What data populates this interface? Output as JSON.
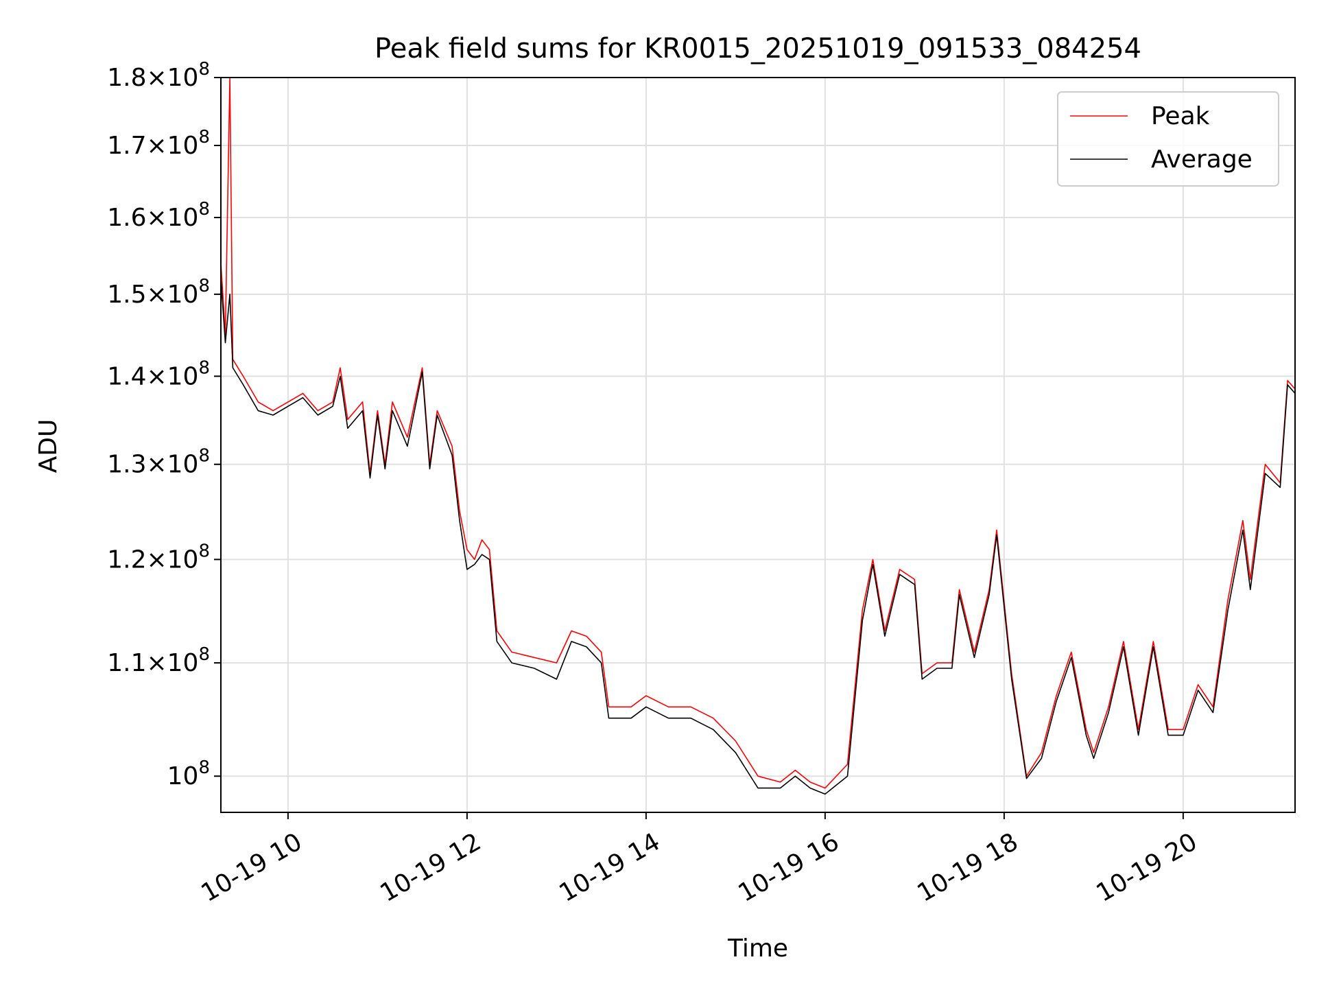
{
  "chart_data": {
    "type": "line",
    "title": "Peak field sums for KR0015_20251019_091533_084254",
    "xlabel": "Time",
    "ylabel": "ADU",
    "yscale": "log",
    "xlim": [
      "2025-10-19 09:15",
      "2025-10-19 21:15"
    ],
    "ylim": [
      97000000,
      180000000
    ],
    "x_ticks": [
      "10-19 10",
      "10-19 12",
      "10-19 14",
      "10-19 16",
      "10-19 18",
      "10-19 20"
    ],
    "y_ticks": [
      {
        "base": "1.8",
        "exp": "8",
        "value": 180000000
      },
      {
        "base": "1.7",
        "exp": "8",
        "value": 170000000
      },
      {
        "base": "1.6",
        "exp": "8",
        "value": 160000000
      },
      {
        "base": "1.5",
        "exp": "8",
        "value": 150000000
      },
      {
        "base": "1.4",
        "exp": "8",
        "value": 140000000
      },
      {
        "base": "1.3",
        "exp": "8",
        "value": 130000000
      },
      {
        "base": "1.2",
        "exp": "8",
        "value": 120000000
      },
      {
        "base": "1.1",
        "exp": "8",
        "value": 110000000
      },
      {
        "base": "",
        "exp": "8",
        "value": 100000000
      }
    ],
    "grid": true,
    "legend_position": "top-right",
    "series": [
      {
        "name": "Peak",
        "color": "#ff0000",
        "points": [
          [
            "2025-10-19 09:15",
            154000000
          ],
          [
            "2025-10-19 09:18",
            145000000
          ],
          [
            "2025-10-19 09:21",
            180000000
          ],
          [
            "2025-10-19 09:23",
            142000000
          ],
          [
            "2025-10-19 09:30",
            140000000
          ],
          [
            "2025-10-19 09:40",
            137000000
          ],
          [
            "2025-10-19 09:50",
            136000000
          ],
          [
            "2025-10-19 10:00",
            137000000
          ],
          [
            "2025-10-19 10:10",
            138000000
          ],
          [
            "2025-10-19 10:20",
            136000000
          ],
          [
            "2025-10-19 10:30",
            137000000
          ],
          [
            "2025-10-19 10:35",
            141000000
          ],
          [
            "2025-10-19 10:40",
            135000000
          ],
          [
            "2025-10-19 10:50",
            137000000
          ],
          [
            "2025-10-19 10:55",
            129000000
          ],
          [
            "2025-10-19 11:00",
            136000000
          ],
          [
            "2025-10-19 11:05",
            130000000
          ],
          [
            "2025-10-19 11:10",
            137000000
          ],
          [
            "2025-10-19 11:20",
            133000000
          ],
          [
            "2025-10-19 11:30",
            141000000
          ],
          [
            "2025-10-19 11:35",
            130000000
          ],
          [
            "2025-10-19 11:40",
            136000000
          ],
          [
            "2025-10-19 11:50",
            132000000
          ],
          [
            "2025-10-19 11:55",
            125000000
          ],
          [
            "2025-10-19 12:00",
            121000000
          ],
          [
            "2025-10-19 12:05",
            120000000
          ],
          [
            "2025-10-19 12:10",
            122000000
          ],
          [
            "2025-10-19 12:15",
            121000000
          ],
          [
            "2025-10-19 12:20",
            113000000
          ],
          [
            "2025-10-19 12:30",
            111000000
          ],
          [
            "2025-10-19 12:45",
            110500000
          ],
          [
            "2025-10-19 13:00",
            110000000
          ],
          [
            "2025-10-19 13:10",
            113000000
          ],
          [
            "2025-10-19 13:20",
            112500000
          ],
          [
            "2025-10-19 13:30",
            111000000
          ],
          [
            "2025-10-19 13:35",
            106000000
          ],
          [
            "2025-10-19 13:50",
            106000000
          ],
          [
            "2025-10-19 14:00",
            107000000
          ],
          [
            "2025-10-19 14:15",
            106000000
          ],
          [
            "2025-10-19 14:30",
            106000000
          ],
          [
            "2025-10-19 14:45",
            105000000
          ],
          [
            "2025-10-19 15:00",
            103000000
          ],
          [
            "2025-10-19 15:15",
            100000000
          ],
          [
            "2025-10-19 15:30",
            99500000
          ],
          [
            "2025-10-19 15:40",
            100500000
          ],
          [
            "2025-10-19 15:50",
            99500000
          ],
          [
            "2025-10-19 16:00",
            99000000
          ],
          [
            "2025-10-19 16:15",
            101000000
          ],
          [
            "2025-10-19 16:25",
            115000000
          ],
          [
            "2025-10-19 16:32",
            120000000
          ],
          [
            "2025-10-19 16:40",
            113000000
          ],
          [
            "2025-10-19 16:50",
            119000000
          ],
          [
            "2025-10-19 17:00",
            118000000
          ],
          [
            "2025-10-19 17:05",
            109000000
          ],
          [
            "2025-10-19 17:15",
            110000000
          ],
          [
            "2025-10-19 17:25",
            110000000
          ],
          [
            "2025-10-19 17:30",
            117000000
          ],
          [
            "2025-10-19 17:40",
            111000000
          ],
          [
            "2025-10-19 17:50",
            117000000
          ],
          [
            "2025-10-19 17:55",
            123000000
          ],
          [
            "2025-10-19 18:05",
            109000000
          ],
          [
            "2025-10-19 18:15",
            100000000
          ],
          [
            "2025-10-19 18:25",
            102000000
          ],
          [
            "2025-10-19 18:35",
            107000000
          ],
          [
            "2025-10-19 18:45",
            111000000
          ],
          [
            "2025-10-19 18:55",
            104000000
          ],
          [
            "2025-10-19 19:00",
            102000000
          ],
          [
            "2025-10-19 19:10",
            106000000
          ],
          [
            "2025-10-19 19:20",
            112000000
          ],
          [
            "2025-10-19 19:30",
            104000000
          ],
          [
            "2025-10-19 19:40",
            112000000
          ],
          [
            "2025-10-19 19:50",
            104000000
          ],
          [
            "2025-10-19 20:00",
            104000000
          ],
          [
            "2025-10-19 20:10",
            108000000
          ],
          [
            "2025-10-19 20:20",
            106000000
          ],
          [
            "2025-10-19 20:30",
            116000000
          ],
          [
            "2025-10-19 20:40",
            124000000
          ],
          [
            "2025-10-19 20:45",
            118000000
          ],
          [
            "2025-10-19 20:55",
            130000000
          ],
          [
            "2025-10-19 21:05",
            128000000
          ],
          [
            "2025-10-19 21:10",
            139500000
          ],
          [
            "2025-10-19 21:15",
            138500000
          ]
        ]
      },
      {
        "name": "Average",
        "color": "#000000",
        "points": [
          [
            "2025-10-19 09:15",
            152000000
          ],
          [
            "2025-10-19 09:18",
            144000000
          ],
          [
            "2025-10-19 09:21",
            150000000
          ],
          [
            "2025-10-19 09:23",
            141000000
          ],
          [
            "2025-10-19 09:30",
            139000000
          ],
          [
            "2025-10-19 09:40",
            136000000
          ],
          [
            "2025-10-19 09:50",
            135500000
          ],
          [
            "2025-10-19 10:00",
            136500000
          ],
          [
            "2025-10-19 10:10",
            137500000
          ],
          [
            "2025-10-19 10:20",
            135500000
          ],
          [
            "2025-10-19 10:30",
            136500000
          ],
          [
            "2025-10-19 10:35",
            140000000
          ],
          [
            "2025-10-19 10:40",
            134000000
          ],
          [
            "2025-10-19 10:50",
            136000000
          ],
          [
            "2025-10-19 10:55",
            128500000
          ],
          [
            "2025-10-19 11:00",
            135500000
          ],
          [
            "2025-10-19 11:05",
            129500000
          ],
          [
            "2025-10-19 11:10",
            136000000
          ],
          [
            "2025-10-19 11:20",
            132000000
          ],
          [
            "2025-10-19 11:30",
            140500000
          ],
          [
            "2025-10-19 11:35",
            129500000
          ],
          [
            "2025-10-19 11:40",
            135500000
          ],
          [
            "2025-10-19 11:50",
            131000000
          ],
          [
            "2025-10-19 11:55",
            124000000
          ],
          [
            "2025-10-19 12:00",
            119000000
          ],
          [
            "2025-10-19 12:05",
            119500000
          ],
          [
            "2025-10-19 12:10",
            120500000
          ],
          [
            "2025-10-19 12:15",
            120000000
          ],
          [
            "2025-10-19 12:20",
            112000000
          ],
          [
            "2025-10-19 12:30",
            110000000
          ],
          [
            "2025-10-19 12:45",
            109500000
          ],
          [
            "2025-10-19 13:00",
            108500000
          ],
          [
            "2025-10-19 13:10",
            112000000
          ],
          [
            "2025-10-19 13:20",
            111500000
          ],
          [
            "2025-10-19 13:30",
            110000000
          ],
          [
            "2025-10-19 13:35",
            105000000
          ],
          [
            "2025-10-19 13:50",
            105000000
          ],
          [
            "2025-10-19 14:00",
            106000000
          ],
          [
            "2025-10-19 14:15",
            105000000
          ],
          [
            "2025-10-19 14:30",
            105000000
          ],
          [
            "2025-10-19 14:45",
            104000000
          ],
          [
            "2025-10-19 15:00",
            102000000
          ],
          [
            "2025-10-19 15:15",
            99000000
          ],
          [
            "2025-10-19 15:30",
            99000000
          ],
          [
            "2025-10-19 15:40",
            100000000
          ],
          [
            "2025-10-19 15:50",
            99000000
          ],
          [
            "2025-10-19 16:00",
            98500000
          ],
          [
            "2025-10-19 16:15",
            100000000
          ],
          [
            "2025-10-19 16:25",
            114000000
          ],
          [
            "2025-10-19 16:32",
            119500000
          ],
          [
            "2025-10-19 16:40",
            112500000
          ],
          [
            "2025-10-19 16:50",
            118500000
          ],
          [
            "2025-10-19 17:00",
            117500000
          ],
          [
            "2025-10-19 17:05",
            108500000
          ],
          [
            "2025-10-19 17:15",
            109500000
          ],
          [
            "2025-10-19 17:25",
            109500000
          ],
          [
            "2025-10-19 17:30",
            116500000
          ],
          [
            "2025-10-19 17:40",
            110500000
          ],
          [
            "2025-10-19 17:50",
            116500000
          ],
          [
            "2025-10-19 17:55",
            122500000
          ],
          [
            "2025-10-19 18:05",
            108500000
          ],
          [
            "2025-10-19 18:15",
            99800000
          ],
          [
            "2025-10-19 18:25",
            101500000
          ],
          [
            "2025-10-19 18:35",
            106500000
          ],
          [
            "2025-10-19 18:45",
            110500000
          ],
          [
            "2025-10-19 18:55",
            103500000
          ],
          [
            "2025-10-19 19:00",
            101500000
          ],
          [
            "2025-10-19 19:10",
            105500000
          ],
          [
            "2025-10-19 19:20",
            111500000
          ],
          [
            "2025-10-19 19:30",
            103500000
          ],
          [
            "2025-10-19 19:40",
            111500000
          ],
          [
            "2025-10-19 19:50",
            103500000
          ],
          [
            "2025-10-19 20:00",
            103500000
          ],
          [
            "2025-10-19 20:10",
            107500000
          ],
          [
            "2025-10-19 20:20",
            105500000
          ],
          [
            "2025-10-19 20:30",
            115000000
          ],
          [
            "2025-10-19 20:40",
            123000000
          ],
          [
            "2025-10-19 20:45",
            117000000
          ],
          [
            "2025-10-19 20:55",
            129000000
          ],
          [
            "2025-10-19 21:05",
            127500000
          ],
          [
            "2025-10-19 21:10",
            139000000
          ],
          [
            "2025-10-19 21:15",
            138000000
          ]
        ]
      }
    ]
  }
}
